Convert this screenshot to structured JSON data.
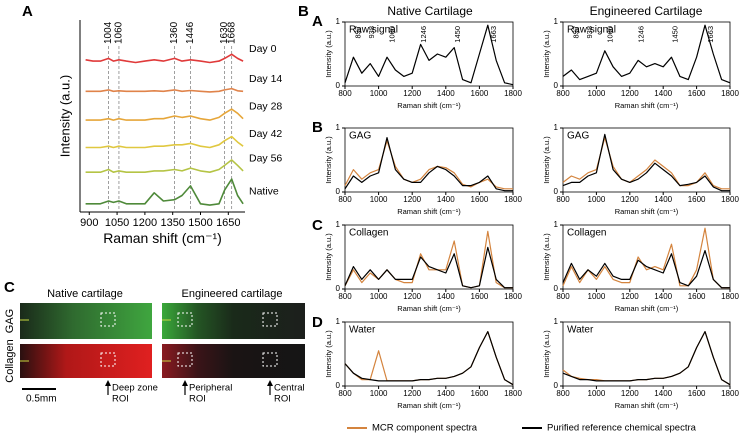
{
  "panel_labels": [
    "A",
    "B",
    "C"
  ],
  "panel_b": {
    "columns": [
      "Native Cartilage",
      "Engineered Cartilage"
    ],
    "rows": [
      "A",
      "B",
      "C",
      "D"
    ]
  },
  "legend": [
    {
      "name": "MCR component spectra",
      "color": "#d4843e"
    },
    {
      "name": "Purified reference chemical spectra",
      "color": "#000000"
    }
  ],
  "micrograph": {
    "columns": [
      "Native cartilage",
      "Engineered cartilage"
    ],
    "rows": [
      "GAG",
      "Collagen"
    ],
    "scale_bar": "0.5mm",
    "rois": [
      [
        "Deep zone",
        "ROI"
      ],
      [
        "Peripheral",
        "ROI"
      ],
      [
        "Central",
        "ROI"
      ]
    ]
  },
  "chart_data": [
    {
      "type": "line",
      "xlabel": "Raman shift (cm⁻¹)",
      "ylabel": "Intensity (a.u.)",
      "xlim": [
        850,
        1740
      ],
      "ylim": [
        0,
        7
      ],
      "xticks": [
        900,
        1050,
        1200,
        1350,
        1500,
        1650
      ],
      "frame": false,
      "peak_lines": [
        1004,
        1060,
        1360,
        1446,
        1630,
        1668
      ],
      "x": [
        880,
        920,
        960,
        1004,
        1030,
        1060,
        1100,
        1150,
        1200,
        1250,
        1300,
        1360,
        1400,
        1446,
        1500,
        1550,
        1600,
        1630,
        1668,
        1700,
        1730
      ],
      "series": [
        {
          "name": "Day 0",
          "color": "#e03a3a",
          "values": [
            5.55,
            5.5,
            5.5,
            5.6,
            5.5,
            5.55,
            5.5,
            5.45,
            5.5,
            5.55,
            5.5,
            5.6,
            5.5,
            5.55,
            5.5,
            5.45,
            5.5,
            5.6,
            5.75,
            5.6,
            5.5
          ]
        },
        {
          "name": "Day 14",
          "color": "#e0834a",
          "values": [
            4.4,
            4.4,
            4.4,
            4.45,
            4.4,
            4.42,
            4.4,
            4.4,
            4.4,
            4.42,
            4.4,
            4.45,
            4.4,
            4.43,
            4.4,
            4.38,
            4.4,
            4.45,
            4.5,
            4.42,
            4.4
          ]
        },
        {
          "name": "Day 28",
          "color": "#e6a63a",
          "values": [
            3.35,
            3.35,
            3.35,
            3.4,
            3.35,
            3.4,
            3.35,
            3.35,
            3.35,
            3.4,
            3.4,
            3.5,
            3.45,
            3.5,
            3.4,
            3.35,
            3.45,
            3.6,
            3.75,
            3.6,
            3.4
          ]
        },
        {
          "name": "Day 42",
          "color": "#e0c840",
          "values": [
            2.35,
            2.35,
            2.35,
            2.4,
            2.35,
            2.4,
            2.35,
            2.35,
            2.35,
            2.4,
            2.4,
            2.45,
            2.45,
            2.5,
            2.4,
            2.35,
            2.45,
            2.6,
            2.75,
            2.55,
            2.4
          ]
        },
        {
          "name": "Day 56",
          "color": "#b5c445",
          "values": [
            1.45,
            1.45,
            1.45,
            1.55,
            1.45,
            1.5,
            1.45,
            1.45,
            1.45,
            1.5,
            1.5,
            1.55,
            1.5,
            1.6,
            1.5,
            1.45,
            1.55,
            1.7,
            1.9,
            1.7,
            1.5
          ]
        },
        {
          "name": "Native",
          "color": "#4f8a3a",
          "values": [
            0.3,
            0.3,
            0.3,
            0.4,
            0.35,
            0.4,
            0.3,
            0.3,
            0.3,
            0.7,
            0.4,
            0.45,
            0.6,
            0.95,
            0.3,
            0.25,
            0.3,
            0.8,
            1.2,
            0.6,
            0.3
          ]
        }
      ]
    },
    {
      "type": "line",
      "label": "Raw signal",
      "xlabel": "Raman shift (cm⁻¹)",
      "ylabel": "Intensity (a.u.)",
      "xlim": [
        800,
        1800
      ],
      "ylim": [
        0,
        1
      ],
      "xticks": [
        800,
        1000,
        1200,
        1400,
        1600,
        1800
      ],
      "yticks": [
        0,
        1
      ],
      "frame": true,
      "peak_labels": [
        857,
        938,
        1060,
        1246,
        1450,
        1663
      ],
      "x": [
        800,
        850,
        900,
        950,
        1000,
        1050,
        1100,
        1150,
        1200,
        1250,
        1300,
        1350,
        1400,
        1450,
        1500,
        1550,
        1600,
        1650,
        1700,
        1750,
        1800
      ],
      "series": [
        {
          "color": "#000000",
          "values": [
            0.05,
            0.45,
            0.2,
            0.35,
            0.15,
            0.45,
            0.25,
            0.15,
            0.2,
            0.65,
            0.4,
            0.5,
            0.45,
            0.6,
            0.1,
            0.05,
            0.5,
            0.95,
            0.4,
            0.05,
            0.02
          ]
        }
      ]
    },
    {
      "type": "line",
      "label": "Raw signal",
      "xlabel": "Raman shift (cm⁻¹)",
      "ylabel": "Intensity (a.u.)",
      "xlim": [
        800,
        1800
      ],
      "ylim": [
        0,
        1
      ],
      "xticks": [
        800,
        1000,
        1200,
        1400,
        1600,
        1800
      ],
      "yticks": [
        0,
        1
      ],
      "frame": true,
      "peak_labels": [
        857,
        938,
        1060,
        1246,
        1450,
        1663
      ],
      "x": [
        800,
        850,
        900,
        950,
        1000,
        1050,
        1100,
        1150,
        1200,
        1250,
        1300,
        1350,
        1400,
        1450,
        1500,
        1550,
        1600,
        1650,
        1700,
        1750,
        1800
      ],
      "series": [
        {
          "color": "#000000",
          "values": [
            0.15,
            0.25,
            0.1,
            0.15,
            0.2,
            0.55,
            0.3,
            0.15,
            0.2,
            0.4,
            0.3,
            0.35,
            0.3,
            0.45,
            0.15,
            0.1,
            0.45,
            0.95,
            0.5,
            0.1,
            0.05
          ]
        }
      ]
    },
    {
      "type": "line",
      "label": "GAG",
      "xlabel": "Raman shift (cm⁻¹)",
      "ylabel": "Intensity (a.u.)",
      "xlim": [
        800,
        1800
      ],
      "ylim": [
        0,
        1
      ],
      "xticks": [
        800,
        1000,
        1200,
        1400,
        1600,
        1800
      ],
      "yticks": [
        0,
        1
      ],
      "frame": true,
      "x": [
        800,
        850,
        900,
        950,
        1000,
        1050,
        1100,
        1150,
        1200,
        1250,
        1300,
        1350,
        1400,
        1450,
        1500,
        1550,
        1600,
        1650,
        1700,
        1750,
        1800
      ],
      "series": [
        {
          "color": "#d4843e",
          "values": [
            0.1,
            0.35,
            0.2,
            0.3,
            0.35,
            0.8,
            0.4,
            0.2,
            0.15,
            0.2,
            0.35,
            0.4,
            0.38,
            0.3,
            0.12,
            0.08,
            0.15,
            0.2,
            0.08,
            0.05,
            0.05
          ]
        },
        {
          "color": "#000000",
          "values": [
            0.05,
            0.25,
            0.15,
            0.25,
            0.3,
            0.85,
            0.35,
            0.2,
            0.15,
            0.15,
            0.3,
            0.4,
            0.35,
            0.25,
            0.1,
            0.1,
            0.15,
            0.25,
            0.05,
            0.02,
            0.02
          ]
        }
      ]
    },
    {
      "type": "line",
      "label": "GAG",
      "xlabel": "Raman shift (cm⁻¹)",
      "ylabel": "Intensity (a.u.)",
      "xlim": [
        800,
        1800
      ],
      "ylim": [
        0,
        1
      ],
      "xticks": [
        800,
        1000,
        1200,
        1400,
        1600,
        1800
      ],
      "yticks": [
        0,
        1
      ],
      "frame": true,
      "x": [
        800,
        850,
        900,
        950,
        1000,
        1050,
        1100,
        1150,
        1200,
        1250,
        1300,
        1350,
        1400,
        1450,
        1500,
        1550,
        1600,
        1650,
        1700,
        1750,
        1800
      ],
      "series": [
        {
          "color": "#d4843e",
          "values": [
            0.15,
            0.25,
            0.2,
            0.3,
            0.35,
            0.85,
            0.4,
            0.2,
            0.15,
            0.25,
            0.35,
            0.5,
            0.4,
            0.3,
            0.1,
            0.1,
            0.15,
            0.3,
            0.1,
            0.05,
            0.05
          ]
        },
        {
          "color": "#000000",
          "values": [
            0.1,
            0.15,
            0.15,
            0.25,
            0.3,
            0.9,
            0.35,
            0.2,
            0.15,
            0.2,
            0.3,
            0.45,
            0.35,
            0.25,
            0.1,
            0.12,
            0.15,
            0.25,
            0.08,
            0.02,
            0.02
          ]
        }
      ]
    },
    {
      "type": "line",
      "label": "Collagen",
      "xlabel": "Raman shift (cm⁻¹)",
      "ylabel": "Intensity (a.u.)",
      "xlim": [
        800,
        1800
      ],
      "ylim": [
        0,
        1
      ],
      "xticks": [
        800,
        1000,
        1200,
        1400,
        1600,
        1800
      ],
      "yticks": [
        0,
        1
      ],
      "frame": true,
      "x": [
        800,
        850,
        900,
        950,
        1000,
        1050,
        1100,
        1150,
        1200,
        1250,
        1300,
        1350,
        1400,
        1450,
        1500,
        1550,
        1600,
        1650,
        1700,
        1750,
        1800
      ],
      "series": [
        {
          "color": "#d4843e",
          "values": [
            0.05,
            0.3,
            0.1,
            0.25,
            0.15,
            0.3,
            0.15,
            0.1,
            0.1,
            0.55,
            0.3,
            0.3,
            0.3,
            0.75,
            0.05,
            0.02,
            0.05,
            0.9,
            0.1,
            0.02,
            0.02
          ]
        },
        {
          "color": "#000000",
          "values": [
            0.05,
            0.35,
            0.15,
            0.3,
            0.15,
            0.3,
            0.15,
            0.15,
            0.15,
            0.5,
            0.35,
            0.3,
            0.25,
            0.55,
            0.05,
            0.02,
            0.05,
            0.65,
            0.15,
            0.02,
            0.02
          ]
        }
      ]
    },
    {
      "type": "line",
      "label": "Collagen",
      "xlabel": "Raman shift (cm⁻¹)",
      "ylabel": "Intensity (a.u.)",
      "xlim": [
        800,
        1800
      ],
      "ylim": [
        0,
        1
      ],
      "xticks": [
        800,
        1000,
        1200,
        1400,
        1600,
        1800
      ],
      "yticks": [
        0,
        1
      ],
      "frame": true,
      "x": [
        800,
        850,
        900,
        950,
        1000,
        1050,
        1100,
        1150,
        1200,
        1250,
        1300,
        1350,
        1400,
        1450,
        1500,
        1550,
        1600,
        1650,
        1700,
        1750,
        1800
      ],
      "series": [
        {
          "color": "#d4843e",
          "values": [
            0.05,
            0.35,
            0.1,
            0.3,
            0.15,
            0.35,
            0.15,
            0.1,
            0.1,
            0.5,
            0.3,
            0.35,
            0.3,
            0.7,
            0.05,
            0.05,
            0.3,
            0.95,
            0.15,
            0.02,
            0.02
          ]
        },
        {
          "color": "#000000",
          "values": [
            0.1,
            0.4,
            0.15,
            0.3,
            0.2,
            0.4,
            0.2,
            0.15,
            0.15,
            0.45,
            0.35,
            0.3,
            0.25,
            0.55,
            0.1,
            0.05,
            0.2,
            0.6,
            0.15,
            0.02,
            0.02
          ]
        }
      ]
    },
    {
      "type": "line",
      "label": "Water",
      "xlabel": "Raman shift (cm⁻¹)",
      "ylabel": "Intensity (a.u.)",
      "xlim": [
        800,
        1800
      ],
      "ylim": [
        0,
        1
      ],
      "xticks": [
        800,
        1000,
        1200,
        1400,
        1600,
        1800
      ],
      "yticks": [
        0,
        1
      ],
      "frame": true,
      "x": [
        800,
        850,
        900,
        950,
        1000,
        1050,
        1100,
        1150,
        1200,
        1250,
        1300,
        1350,
        1400,
        1450,
        1500,
        1550,
        1600,
        1650,
        1700,
        1750,
        1800
      ],
      "series": [
        {
          "color": "#d4843e",
          "values": [
            0.35,
            0.2,
            0.1,
            0.1,
            0.55,
            0.08,
            0.08,
            0.08,
            0.08,
            0.1,
            0.1,
            0.12,
            0.12,
            0.15,
            0.2,
            0.3,
            0.6,
            0.85,
            0.45,
            0.1,
            0.02
          ]
        },
        {
          "color": "#000000",
          "values": [
            0.35,
            0.2,
            0.12,
            0.1,
            0.08,
            0.08,
            0.08,
            0.08,
            0.08,
            0.1,
            0.1,
            0.12,
            0.12,
            0.15,
            0.2,
            0.3,
            0.6,
            0.85,
            0.45,
            0.1,
            0.02
          ]
        }
      ]
    },
    {
      "type": "line",
      "label": "Water",
      "xlabel": "Raman shift (cm⁻¹)",
      "ylabel": "Intensity (a.u.)",
      "xlim": [
        800,
        1800
      ],
      "ylim": [
        0,
        1
      ],
      "xticks": [
        800,
        1000,
        1200,
        1400,
        1600,
        1800
      ],
      "yticks": [
        0,
        1
      ],
      "frame": true,
      "x": [
        800,
        850,
        900,
        950,
        1000,
        1050,
        1100,
        1150,
        1200,
        1250,
        1300,
        1350,
        1400,
        1450,
        1500,
        1550,
        1600,
        1650,
        1700,
        1750,
        1800
      ],
      "series": [
        {
          "color": "#d4843e",
          "values": [
            0.25,
            0.15,
            0.12,
            0.1,
            0.1,
            0.08,
            0.08,
            0.08,
            0.08,
            0.1,
            0.1,
            0.12,
            0.12,
            0.15,
            0.2,
            0.3,
            0.6,
            0.85,
            0.45,
            0.1,
            0.02
          ]
        },
        {
          "color": "#000000",
          "values": [
            0.2,
            0.15,
            0.1,
            0.1,
            0.08,
            0.08,
            0.08,
            0.08,
            0.08,
            0.1,
            0.1,
            0.12,
            0.12,
            0.15,
            0.2,
            0.3,
            0.6,
            0.85,
            0.45,
            0.1,
            0.02
          ]
        }
      ]
    }
  ]
}
